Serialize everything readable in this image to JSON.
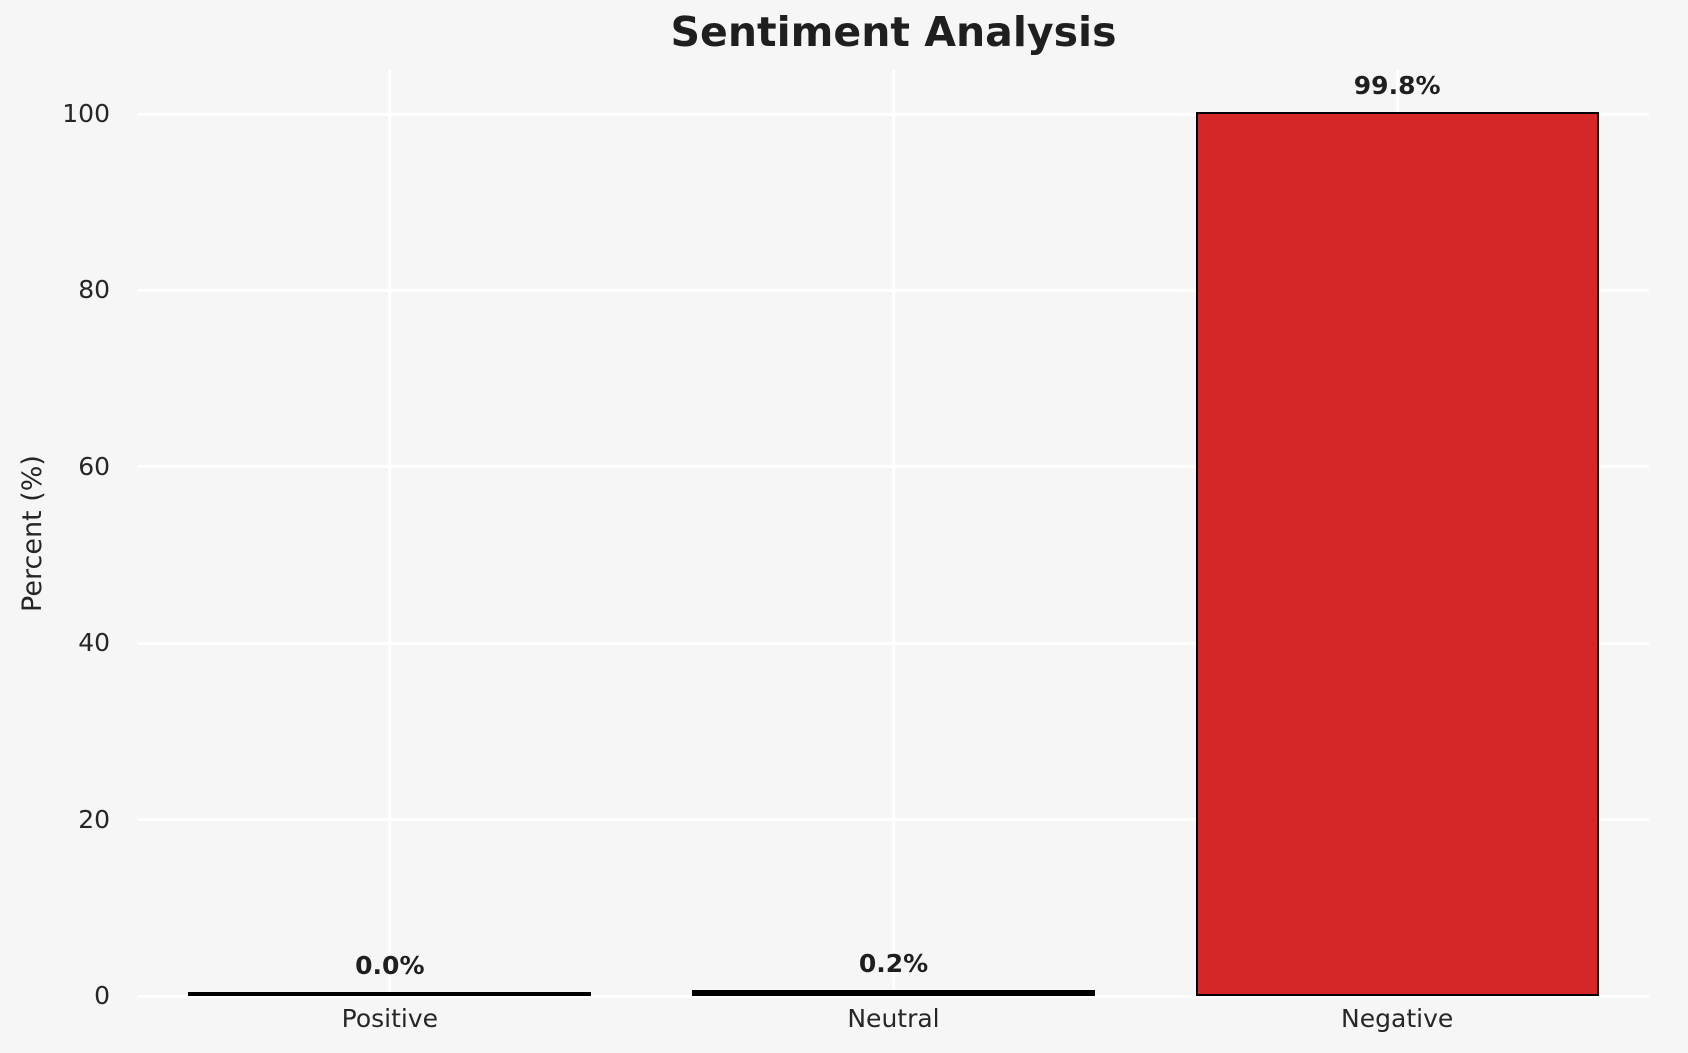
{
  "title": "Sentiment Analysis",
  "colors": {
    "background": "#f6f6f6",
    "grid": "#ffffff",
    "bar_edge": "#000000",
    "tick_text": "#262626",
    "title_text": "#1f1f1f",
    "negative_red": "#d62728"
  },
  "chart_data": {
    "type": "bar",
    "title": "Sentiment Analysis",
    "categories": [
      "Positive",
      "Neutral",
      "Negative"
    ],
    "values": [
      0.0,
      0.2,
      99.8
    ],
    "value_labels": [
      "0.0%",
      "0.2%",
      "99.8%"
    ],
    "bar_colors": [
      "#000000",
      "#000000",
      "#d62728"
    ],
    "xlabel": "",
    "ylabel": "Percent (%)",
    "yticks": [
      0,
      20,
      40,
      60,
      80,
      100
    ],
    "ylim": [
      0,
      105
    ],
    "grid": true,
    "grid_orientation": "both",
    "legend": false
  }
}
